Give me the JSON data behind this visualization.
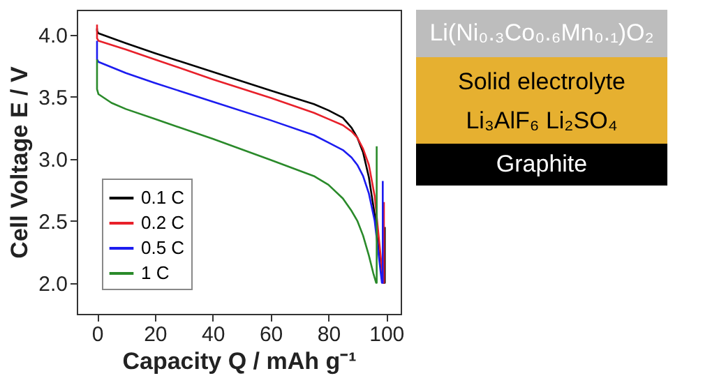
{
  "chart_data": {
    "type": "line",
    "xlabel": "Capacity Q / mAh g⁻¹",
    "ylabel": "Cell Voltage E / V",
    "xlim": [
      -7,
      105
    ],
    "ylim": [
      1.75,
      4.2
    ],
    "xticks": [
      0,
      20,
      40,
      60,
      80,
      100
    ],
    "yticks": [
      {
        "value": 2,
        "label": "2.0"
      },
      2.5,
      {
        "value": 3,
        "label": "3.0"
      },
      3.5,
      {
        "value": 4,
        "label": "4.0"
      }
    ],
    "grid": false,
    "legend": "bottom left",
    "marker": "none",
    "line_style": "solid",
    "series": [
      {
        "name": "0.1 C",
        "color": "#000000",
        "x": [
          0,
          0,
          0.5,
          10,
          20,
          40,
          60,
          75,
          80,
          85,
          88,
          90,
          92,
          94,
          96,
          97.5,
          99,
          99.5,
          99.5
        ],
        "values": [
          4.05,
          4.03,
          4.01,
          3.93,
          3.85,
          3.7,
          3.55,
          3.44,
          3.39,
          3.33,
          3.25,
          3.17,
          3.05,
          2.85,
          2.55,
          2.25,
          2.0,
          2.0,
          2.45
        ]
      },
      {
        "name": "0.2 C",
        "color": "#e8202a",
        "x": [
          0,
          0,
          0.5,
          10,
          20,
          40,
          60,
          75,
          80,
          85,
          88,
          90,
          92,
          94,
          96,
          97.5,
          99,
          99.2,
          99.2
        ],
        "values": [
          4.08,
          3.97,
          3.95,
          3.88,
          3.8,
          3.64,
          3.49,
          3.37,
          3.32,
          3.27,
          3.22,
          3.17,
          3.08,
          2.95,
          2.7,
          2.35,
          2.0,
          2.0,
          2.65
        ]
      },
      {
        "name": "0.5 C",
        "color": "#1c1cf0",
        "x": [
          0,
          0,
          0.5,
          10,
          20,
          40,
          60,
          75,
          80,
          85,
          88,
          90,
          92,
          94,
          96,
          97.5,
          98.5,
          98.8,
          98.8
        ],
        "values": [
          3.95,
          3.8,
          3.78,
          3.69,
          3.61,
          3.46,
          3.31,
          3.19,
          3.13,
          3.07,
          3.01,
          2.95,
          2.86,
          2.72,
          2.5,
          2.2,
          2.0,
          2.0,
          2.82
        ]
      },
      {
        "name": "1 C",
        "color": "#2a8a2a",
        "x": [
          0,
          0,
          0.5,
          5,
          10,
          20,
          40,
          60,
          75,
          80,
          85,
          88,
          90,
          92,
          94,
          95.5,
          96.5,
          96.7,
          96.7
        ],
        "values": [
          3.8,
          3.56,
          3.52,
          3.45,
          3.4,
          3.32,
          3.16,
          2.99,
          2.86,
          2.79,
          2.68,
          2.58,
          2.5,
          2.38,
          2.22,
          2.08,
          2.0,
          2.0,
          3.1
        ]
      }
    ],
    "annotations": [
      "Li(Ni₀.₃Co₀.₆Mn₀.₁)O₂",
      "Solid electrolyte",
      "Li₃AlF₆ Li₂SO₄",
      "Graphite"
    ]
  }
}
